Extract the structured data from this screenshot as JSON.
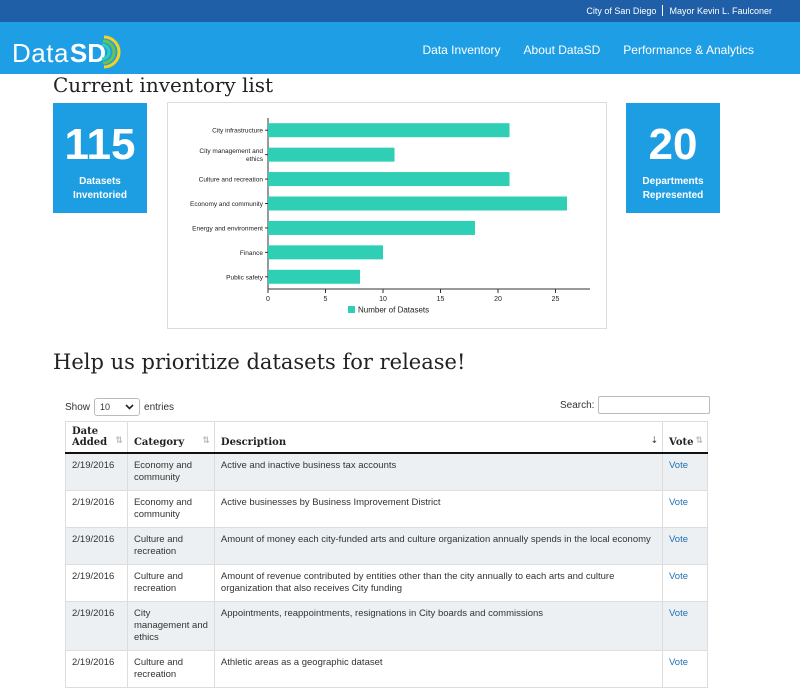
{
  "topbar": {
    "city_link": "City of San Diego",
    "mayor_link": "Mayor Kevin L. Faulconer"
  },
  "brand": {
    "logo_data": "Data",
    "logo_sd": "SD"
  },
  "nav": {
    "items": [
      "Data Inventory",
      "About DataSD",
      "Performance & Analytics"
    ]
  },
  "inventory": {
    "title": "Current inventory list",
    "datasets_count": "115",
    "datasets_label_1": "Datasets",
    "datasets_label_2": "Inventoried",
    "departments_count": "20",
    "departments_label_1": "Departments",
    "departments_label_2": "Represented"
  },
  "chart_data": {
    "type": "bar",
    "orientation": "horizontal",
    "categories": [
      "City infrastructure",
      "City management and ethics",
      "Culture and recreation",
      "Economy and community",
      "Energy and environment",
      "Finance",
      "Public safety"
    ],
    "category_lines": [
      [
        "City infrastructure"
      ],
      [
        "City management and",
        "ethics"
      ],
      [
        "Culture and recreation"
      ],
      [
        "Economy and community"
      ],
      [
        "Energy and environment"
      ],
      [
        "Finance"
      ],
      [
        "Public safety"
      ]
    ],
    "series": [
      {
        "name": "Number of Datasets",
        "values": [
          21,
          11,
          21,
          26,
          18,
          10,
          8
        ]
      }
    ],
    "xlim": [
      0,
      28
    ],
    "xticks": [
      0,
      5,
      10,
      15,
      20,
      25
    ],
    "legend": "bottom",
    "color": "#2ecfb4"
  },
  "prioritize": {
    "title": "Help us prioritize datasets for release!",
    "show_label": "Show",
    "page_size": "10",
    "entries_label": "entries",
    "search_label": "Search:",
    "columns": [
      "Date Added",
      "Category",
      "Description",
      "Vote"
    ],
    "rows": [
      {
        "date": "2/19/2016",
        "category": "Economy and community",
        "description": "Active and inactive business tax accounts",
        "vote": "Vote"
      },
      {
        "date": "2/19/2016",
        "category": "Economy and community",
        "description": "Active businesses by Business Improvement District",
        "vote": "Vote"
      },
      {
        "date": "2/19/2016",
        "category": "Culture and recreation",
        "description": "Amount of money each city-funded arts and culture organization annually spends in the local economy",
        "vote": "Vote"
      },
      {
        "date": "2/19/2016",
        "category": "Culture and recreation",
        "description": "Amount of revenue contributed by entities other than the city annually to each arts and culture organization that also receives City funding",
        "vote": "Vote"
      },
      {
        "date": "2/19/2016",
        "category": "City management and ethics",
        "description": "Appointments, reappointments, resignations in City boards and commissions",
        "vote": "Vote"
      },
      {
        "date": "2/19/2016",
        "category": "Culture and recreation",
        "description": "Athletic areas as a geographic dataset",
        "vote": "Vote"
      }
    ]
  }
}
